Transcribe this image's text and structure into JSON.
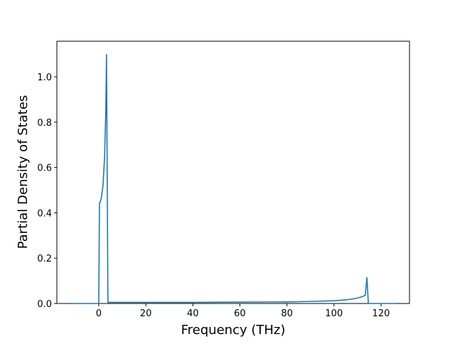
{
  "chart_data": {
    "type": "line",
    "x_label": "Frequency (THz)",
    "y_label": "Partial Density of States",
    "series": [
      {
        "color": "#1f77b4",
        "x": [
          -12,
          0,
          0.3,
          1,
          1.8,
          2.5,
          3.0,
          3.3,
          3.9,
          4.2,
          20,
          40,
          60,
          80,
          90,
          100,
          105,
          108,
          110,
          112,
          113.3,
          114,
          114.6,
          115,
          126
        ],
        "values": [
          0,
          0,
          0.44,
          0.46,
          0.52,
          0.65,
          0.85,
          1.1,
          0.005,
          0.005,
          0.005,
          0.005,
          0.006,
          0.007,
          0.009,
          0.012,
          0.016,
          0.02,
          0.024,
          0.03,
          0.036,
          0.115,
          0.0,
          0.0,
          0.0
        ]
      }
    ],
    "xlim": [
      -17.8,
      132.1
    ],
    "ylim": [
      0,
      1.157
    ],
    "xticks": [
      0,
      20,
      40,
      60,
      80,
      100,
      120
    ],
    "yticks": [
      {
        "value": 0,
        "label": "0.0"
      },
      0.2,
      0.4,
      0.6,
      0.8,
      {
        "value": 1,
        "label": "1.0"
      }
    ]
  }
}
